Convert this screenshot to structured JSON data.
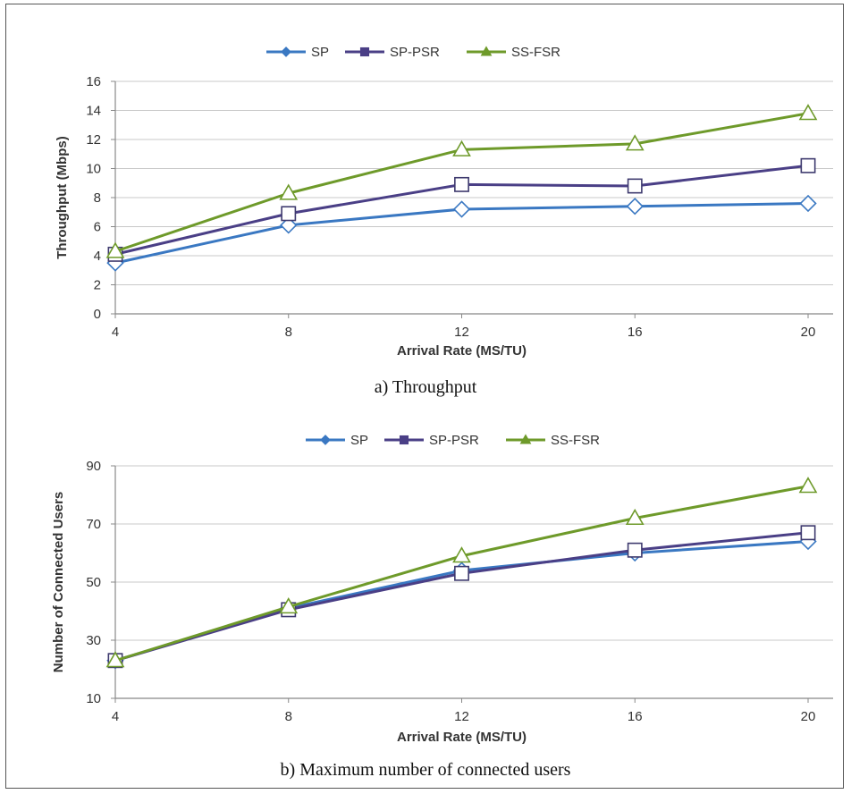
{
  "colors": {
    "SP": "#3a78c2",
    "SP-PSR": "#4a3f86",
    "SS-FSR": "#6e9a2a",
    "grid": "#c8c8c8",
    "axis": "#888888"
  },
  "chart_data": [
    {
      "type": "line",
      "caption": "a) Throughput",
      "xlabel": "Arrival Rate (MS/TU)",
      "ylabel": "Throughput (Mbps)",
      "x": [
        4,
        8,
        12,
        16,
        20
      ],
      "xticks": [
        "4",
        "8",
        "12",
        "16",
        "20"
      ],
      "ylim": [
        0,
        16
      ],
      "yticks": [
        "0",
        "2",
        "4",
        "6",
        "8",
        "10",
        "12",
        "14",
        "16"
      ],
      "grid": true,
      "legend": "top",
      "series": [
        {
          "name": "SP",
          "marker": "diamond",
          "values": [
            3.5,
            6.1,
            7.2,
            7.4,
            7.6
          ]
        },
        {
          "name": "SP-PSR",
          "marker": "square",
          "values": [
            4.1,
            6.9,
            8.9,
            8.8,
            10.2
          ]
        },
        {
          "name": "SS-FSR",
          "marker": "triangle",
          "values": [
            4.3,
            8.3,
            11.3,
            11.7,
            13.8
          ]
        }
      ]
    },
    {
      "type": "line",
      "caption": "b) Maximum number of connected users",
      "xlabel": "Arrival Rate (MS/TU)",
      "ylabel": "Number of Connected Users",
      "x": [
        4,
        8,
        12,
        16,
        20
      ],
      "xticks": [
        "4",
        "8",
        "12",
        "16",
        "20"
      ],
      "ylim": [
        10,
        90
      ],
      "yticks": [
        "10",
        "30",
        "50",
        "70",
        "90"
      ],
      "grid": true,
      "legend": "top",
      "series": [
        {
          "name": "SP",
          "marker": "diamond",
          "values": [
            23,
            41,
            54,
            60,
            64
          ]
        },
        {
          "name": "SP-PSR",
          "marker": "square",
          "values": [
            23,
            40.5,
            53,
            61,
            67
          ]
        },
        {
          "name": "SS-FSR",
          "marker": "triangle",
          "values": [
            23,
            41.5,
            59,
            72,
            83
          ]
        }
      ]
    }
  ]
}
